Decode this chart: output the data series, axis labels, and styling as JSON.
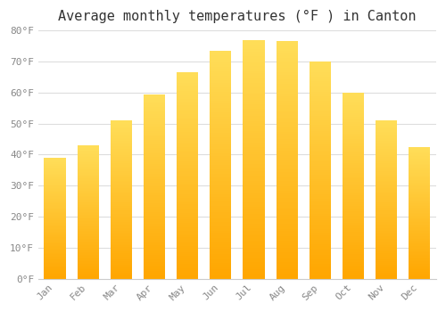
{
  "title": "Average monthly temperatures (°F ) in Canton",
  "months": [
    "Jan",
    "Feb",
    "Mar",
    "Apr",
    "May",
    "Jun",
    "Jul",
    "Aug",
    "Sep",
    "Oct",
    "Nov",
    "Dec"
  ],
  "values": [
    39,
    43,
    51,
    59.5,
    66.5,
    73.5,
    77,
    76.5,
    70,
    60,
    51,
    42.5
  ],
  "bar_color_top": "#FFD966",
  "bar_color_bottom": "#FFA500",
  "ylim": [
    0,
    80
  ],
  "yticks": [
    0,
    10,
    20,
    30,
    40,
    50,
    60,
    70,
    80
  ],
  "ytick_labels": [
    "0°F",
    "10°F",
    "20°F",
    "30°F",
    "40°F",
    "50°F",
    "60°F",
    "70°F",
    "80°F"
  ],
  "background_color": "#ffffff",
  "grid_color": "#dddddd",
  "title_fontsize": 11,
  "tick_fontsize": 8,
  "bar_width": 0.65
}
